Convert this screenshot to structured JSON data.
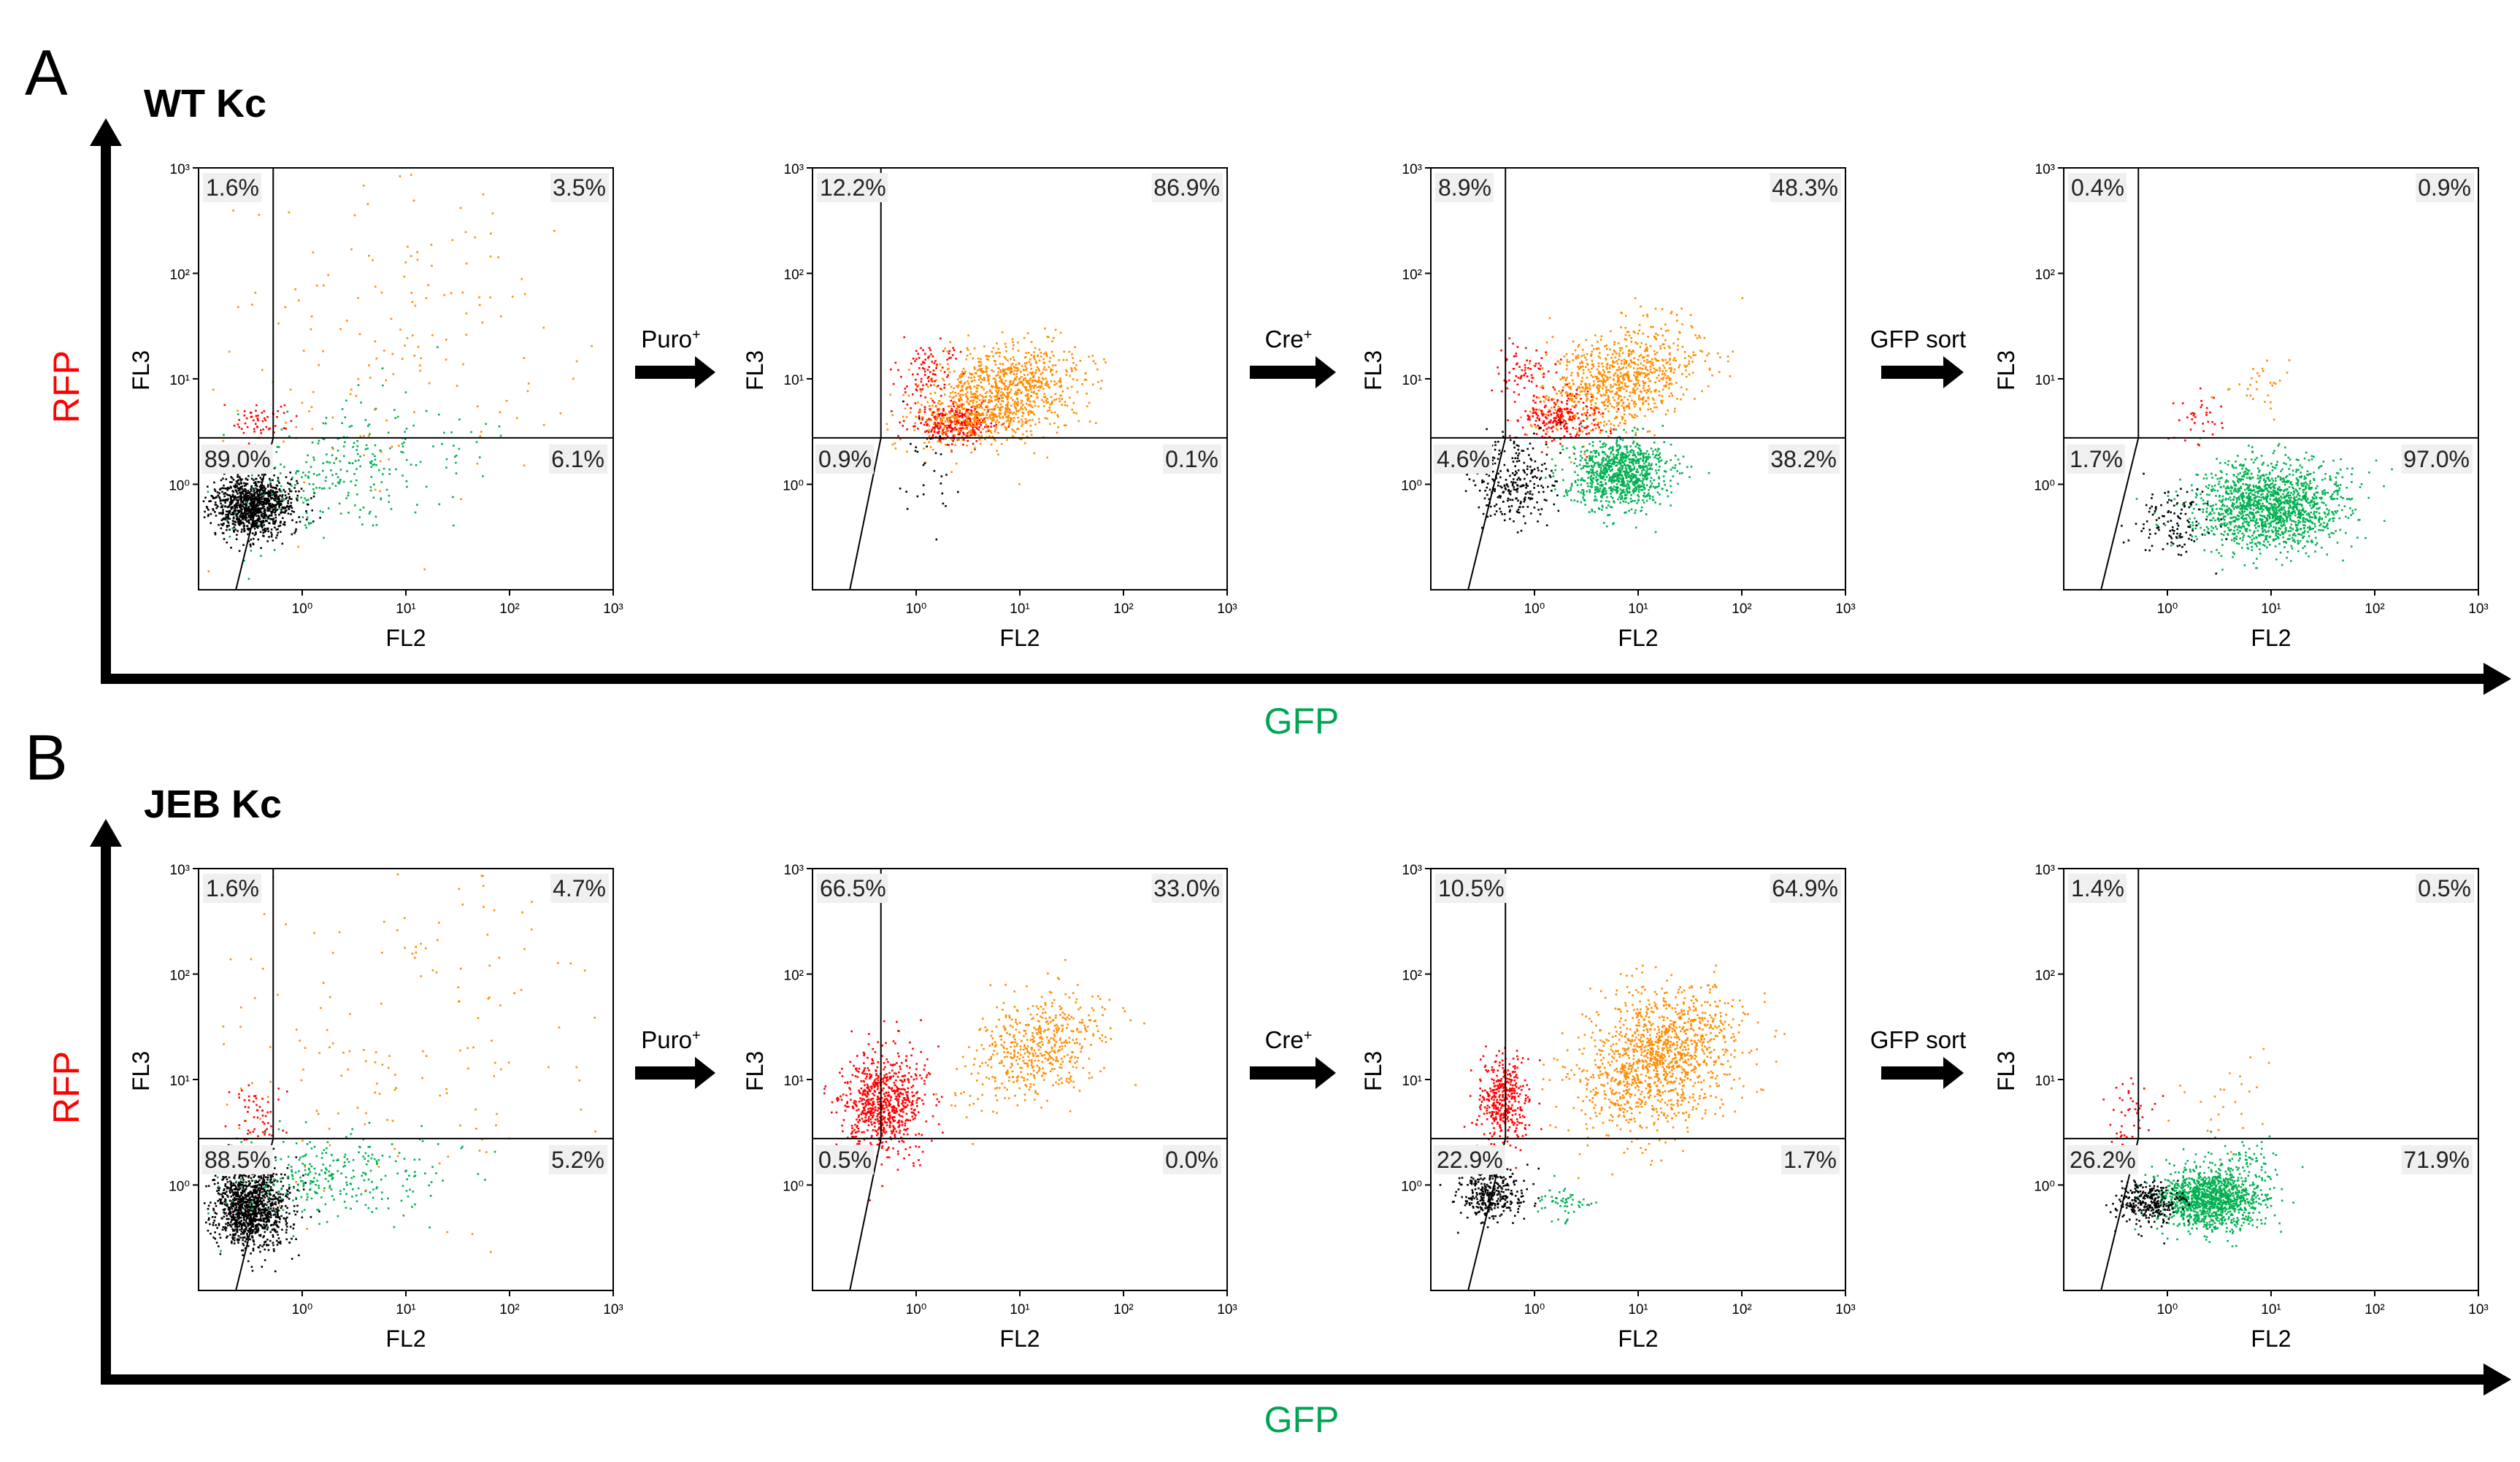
{
  "figure": {
    "colors": {
      "rfp_label": "#ff0000",
      "gfp_label": "#00a550",
      "double_negative": "#000000",
      "rfp_positive": "#ff0000",
      "double_positive": "#ff8c00",
      "gfp_positive": "#00b050"
    }
  },
  "chart_data": [
    {
      "panel": "A",
      "title": "WT Kc",
      "outer_y_label": "RFP",
      "outer_x_label": "GFP",
      "steps": [
        {
          "label": "Puro",
          "superscript": "+"
        },
        {
          "label": "Cre",
          "superscript": "+"
        },
        {
          "label": "GFP sort",
          "superscript": ""
        }
      ],
      "plots": [
        {
          "type": "scatter",
          "xlabel": "FL2",
          "ylabel": "FL3",
          "xticks": [
            "10⁰",
            "10¹",
            "10²",
            "10³"
          ],
          "yticks": [
            "10³",
            "10²",
            "10¹",
            "10⁰"
          ],
          "quadrants": {
            "upper_left": "1.6%",
            "upper_right": "3.5%",
            "lower_left": "89.0%",
            "lower_right": "6.1%"
          }
        },
        {
          "type": "scatter",
          "xlabel": "FL2",
          "ylabel": "FL3",
          "xticks": [
            "10⁰",
            "10¹",
            "10²",
            "10³"
          ],
          "yticks": [
            "10³",
            "10²",
            "10¹",
            "10⁰"
          ],
          "quadrants": {
            "upper_left": "12.2%",
            "upper_right": "86.9%",
            "lower_left": "0.9%",
            "lower_right": "0.1%"
          }
        },
        {
          "type": "scatter",
          "xlabel": "FL2",
          "ylabel": "FL3",
          "xticks": [
            "10⁰",
            "10¹",
            "10²",
            "10³"
          ],
          "yticks": [
            "10³",
            "10²",
            "10¹",
            "10⁰"
          ],
          "quadrants": {
            "upper_left": "8.9%",
            "upper_right": "48.3%",
            "lower_left": "4.6%",
            "lower_right": "38.2%"
          }
        },
        {
          "type": "scatter",
          "xlabel": "FL2",
          "ylabel": "FL3",
          "xticks": [
            "10⁰",
            "10¹",
            "10²",
            "10³"
          ],
          "yticks": [
            "10³",
            "10²",
            "10¹",
            "10⁰"
          ],
          "quadrants": {
            "upper_left": "0.4%",
            "upper_right": "0.9%",
            "lower_left": "1.7%",
            "lower_right": "97.0%"
          }
        }
      ]
    },
    {
      "panel": "B",
      "title": "JEB Kc",
      "outer_y_label": "RFP",
      "outer_x_label": "GFP",
      "steps": [
        {
          "label": "Puro",
          "superscript": "+"
        },
        {
          "label": "Cre",
          "superscript": "+"
        },
        {
          "label": "GFP sort",
          "superscript": ""
        }
      ],
      "plots": [
        {
          "type": "scatter",
          "xlabel": "FL2",
          "ylabel": "FL3",
          "xticks": [
            "10⁰",
            "10¹",
            "10²",
            "10³"
          ],
          "yticks": [
            "10³",
            "10²",
            "10¹",
            "10⁰"
          ],
          "quadrants": {
            "upper_left": "1.6%",
            "upper_right": "4.7%",
            "lower_left": "88.5%",
            "lower_right": "5.2%"
          }
        },
        {
          "type": "scatter",
          "xlabel": "FL2",
          "ylabel": "FL3",
          "xticks": [
            "10⁰",
            "10¹",
            "10²",
            "10³"
          ],
          "yticks": [
            "10³",
            "10²",
            "10¹",
            "10⁰"
          ],
          "quadrants": {
            "upper_left": "66.5%",
            "upper_right": "33.0%",
            "lower_left": "0.5%",
            "lower_right": "0.0%"
          }
        },
        {
          "type": "scatter",
          "xlabel": "FL2",
          "ylabel": "FL3",
          "xticks": [
            "10⁰",
            "10¹",
            "10²",
            "10³"
          ],
          "yticks": [
            "10³",
            "10²",
            "10¹",
            "10⁰"
          ],
          "quadrants": {
            "upper_left": "10.5%",
            "upper_right": "64.9%",
            "lower_left": "22.9%",
            "lower_right": "1.7%"
          }
        },
        {
          "type": "scatter",
          "xlabel": "FL2",
          "ylabel": "FL3",
          "xticks": [
            "10⁰",
            "10¹",
            "10²",
            "10³"
          ],
          "yticks": [
            "10³",
            "10²",
            "10¹",
            "10⁰"
          ],
          "quadrants": {
            "upper_left": "1.4%",
            "upper_right": "0.5%",
            "lower_left": "26.2%",
            "lower_right": "71.9%"
          }
        }
      ]
    }
  ]
}
